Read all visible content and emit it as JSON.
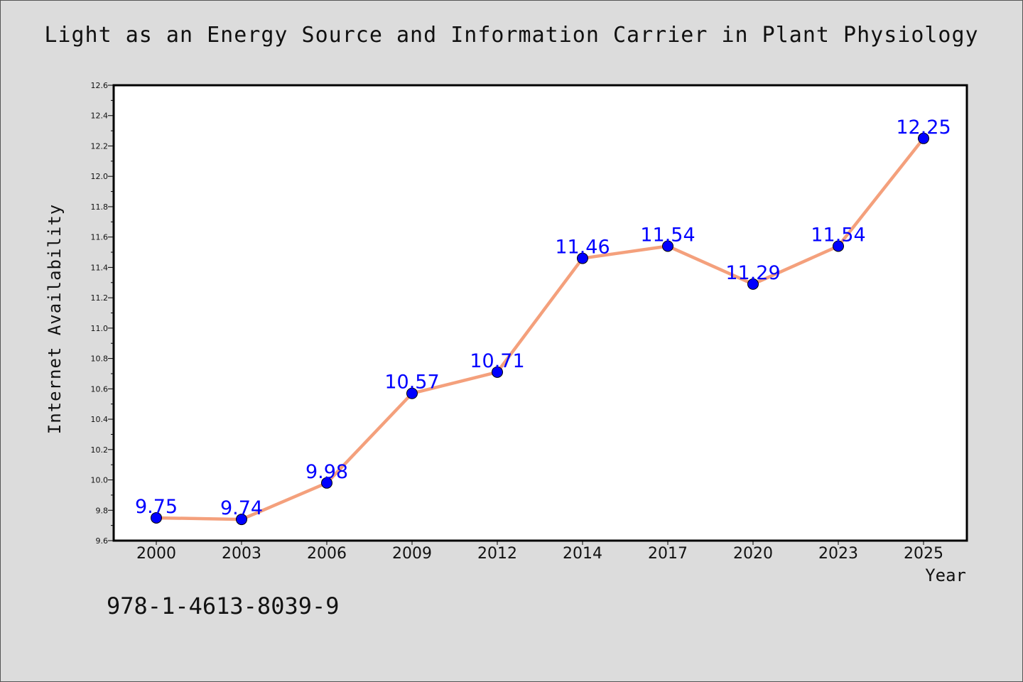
{
  "chart_data": {
    "type": "line",
    "title": "Light as an Energy Source and Information Carrier in Plant Physiology",
    "xlabel": "Year",
    "ylabel": "Internet Availability",
    "categories": [
      "2000",
      "2003",
      "2006",
      "2009",
      "2012",
      "2014",
      "2017",
      "2020",
      "2023",
      "2025"
    ],
    "series": [
      {
        "values": [
          9.75,
          9.74,
          9.98,
          10.57,
          10.71,
          11.46,
          11.54,
          11.29,
          11.54,
          12.25
        ],
        "data_labels": [
          "9.75",
          "9.74",
          "9.98",
          "10.57",
          "10.71",
          "11.46",
          "11.54",
          "11.29",
          "11.54",
          "12.25"
        ]
      }
    ],
    "ylim": [
      9.6,
      12.6
    ],
    "yticks": [
      "9.6",
      "9.8",
      "10.0",
      "10.2",
      "10.4",
      "10.6",
      "10.8",
      "11.0",
      "11.2",
      "11.4",
      "11.6",
      "11.8",
      "12.0",
      "12.2",
      "12.4",
      "12.6"
    ],
    "grid": false,
    "legend": "none",
    "colors": {
      "line": "#f4a07c",
      "marker": "#0000ff",
      "marker_edge": "#000000",
      "data_label": "#0000ff",
      "plot_background": "#ffffff",
      "figure_background": "#dcdcdc"
    }
  },
  "footer": {
    "isbn": "978-1-4613-8039-9"
  }
}
